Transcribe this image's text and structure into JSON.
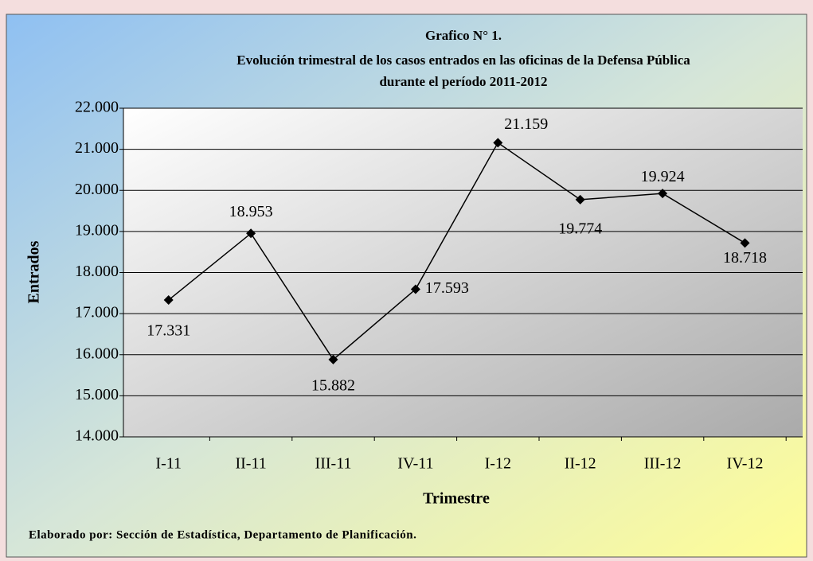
{
  "chart_data": {
    "type": "line",
    "title": [
      "Grafico N° 1.",
      "Evolución trimestral de los casos entrados en las oficinas de la Defensa Pública",
      "durante el período 2011-2012"
    ],
    "x_label": "Trimestre",
    "y_label": "Entrados",
    "footnote": "Elaborado por: Sección de Estadística, Departamento de Planificación.",
    "categories": [
      "I-11",
      "II-11",
      "III-11",
      "IV-11",
      "I-12",
      "II-12",
      "III-12",
      "IV-12"
    ],
    "series": [
      {
        "name": "Entrados",
        "color": "#000000",
        "values": [
          17331,
          18953,
          15882,
          17593,
          21159,
          19774,
          19924,
          18718
        ],
        "value_labels": [
          "17.331",
          "18.953",
          "15.882",
          "17.593",
          "21.159",
          "19.774",
          "19.924",
          "18.718"
        ]
      }
    ],
    "ylim": [
      14000,
      22000
    ],
    "yticks": [
      {
        "value": 14000,
        "label": "14.000"
      },
      {
        "value": 15000,
        "label": "15.000"
      },
      {
        "value": 16000,
        "label": "16.000"
      },
      {
        "value": 17000,
        "label": "17.000"
      },
      {
        "value": 18000,
        "label": "18.000"
      },
      {
        "value": 19000,
        "label": "19.000"
      },
      {
        "value": 20000,
        "label": "20.000"
      },
      {
        "value": 21000,
        "label": "21.000"
      },
      {
        "value": 22000,
        "label": "22.000"
      }
    ],
    "grid": true
  }
}
